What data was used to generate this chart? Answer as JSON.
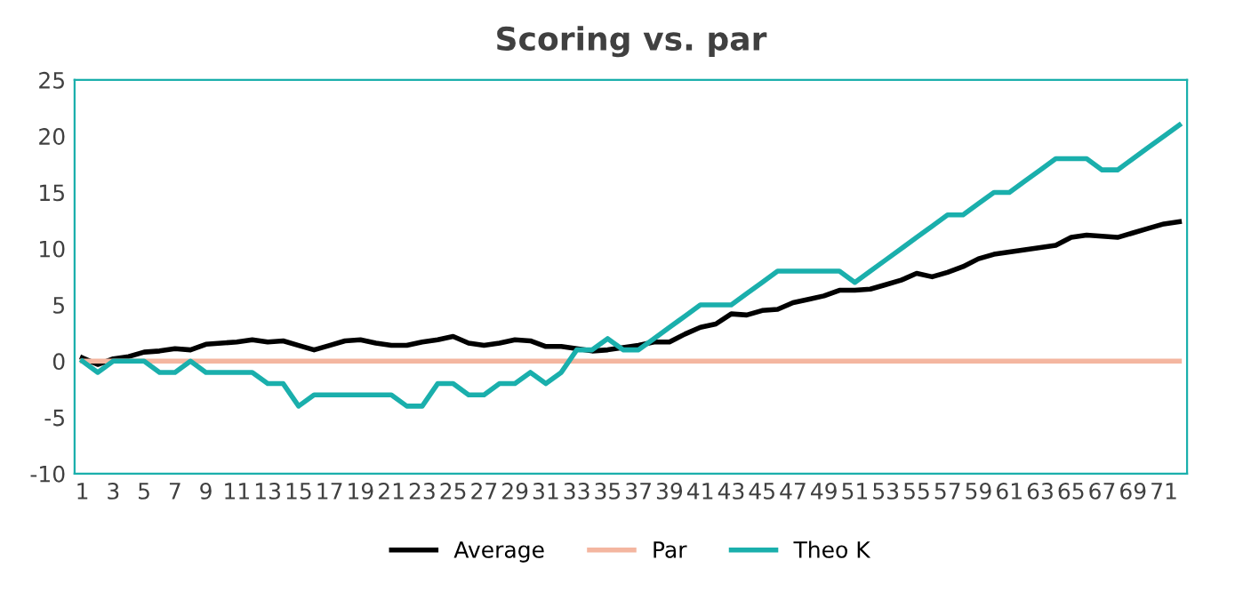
{
  "chart_data": {
    "type": "line",
    "title": "Scoring vs. par",
    "categories": [
      "1",
      null,
      "3",
      null,
      "5",
      null,
      "7",
      null,
      "9",
      null,
      "11",
      null,
      "13",
      null,
      "15",
      null,
      "17",
      null,
      "19",
      null,
      "21",
      null,
      "23",
      null,
      "25",
      null,
      "27",
      null,
      "29",
      null,
      "31",
      null,
      "33",
      null,
      "35",
      null,
      "37",
      null,
      "39",
      null,
      "41",
      null,
      "43",
      null,
      "45",
      null,
      "47",
      null,
      "49",
      null,
      "51",
      null,
      "53",
      null,
      "55",
      null,
      "57",
      null,
      "59",
      null,
      "61",
      null,
      "63",
      null,
      "65",
      null,
      "67",
      null,
      "69",
      null,
      "71",
      null
    ],
    "series": [
      {
        "name": "Average",
        "color": "#000000",
        "values": [
          0.3,
          -0.3,
          0.2,
          0.4,
          0.8,
          0.9,
          1.1,
          1.0,
          1.5,
          1.6,
          1.7,
          1.9,
          1.7,
          1.8,
          1.4,
          1.0,
          1.4,
          1.8,
          1.9,
          1.6,
          1.4,
          1.4,
          1.7,
          1.9,
          2.2,
          1.6,
          1.4,
          1.6,
          1.9,
          1.8,
          1.3,
          1.3,
          1.1,
          0.9,
          1.0,
          1.2,
          1.4,
          1.7,
          1.7,
          2.4,
          3.0,
          3.3,
          4.2,
          4.1,
          4.5,
          4.6,
          5.2,
          5.5,
          5.8,
          6.3,
          6.3,
          6.4,
          6.8,
          7.2,
          7.8,
          7.5,
          7.9,
          8.4,
          9.1,
          9.5,
          9.7,
          9.9,
          10.1,
          10.3,
          11.0,
          11.2,
          11.1,
          11.0,
          11.4,
          11.8,
          12.2,
          12.4
        ]
      },
      {
        "name": "Par",
        "color": "#f4b6a0",
        "values": [
          0,
          0,
          0,
          0,
          0,
          0,
          0,
          0,
          0,
          0,
          0,
          0,
          0,
          0,
          0,
          0,
          0,
          0,
          0,
          0,
          0,
          0,
          0,
          0,
          0,
          0,
          0,
          0,
          0,
          0,
          0,
          0,
          0,
          0,
          0,
          0,
          0,
          0,
          0,
          0,
          0,
          0,
          0,
          0,
          0,
          0,
          0,
          0,
          0,
          0,
          0,
          0,
          0,
          0,
          0,
          0,
          0,
          0,
          0,
          0,
          0,
          0,
          0,
          0,
          0,
          0,
          0,
          0,
          0,
          0,
          0,
          0
        ]
      },
      {
        "name": "Theo K",
        "color": "#1aafac",
        "values": [
          0,
          -1,
          0,
          0,
          0,
          -1,
          -1,
          0,
          -1,
          -1,
          -1,
          -1,
          -2,
          -2,
          -4,
          -3,
          -3,
          -3,
          -3,
          -3,
          -3,
          -4,
          -4,
          -2,
          -2,
          -3,
          -3,
          -2,
          -2,
          -1,
          -2,
          -1,
          1,
          1,
          2,
          1,
          1,
          2,
          3,
          4,
          5,
          5,
          5,
          6,
          7,
          8,
          8,
          8,
          8,
          8,
          7,
          8,
          9,
          10,
          11,
          12,
          13,
          13,
          14,
          15,
          15,
          16,
          17,
          18,
          18,
          18,
          17,
          17,
          18,
          19,
          20,
          21
        ]
      }
    ],
    "ylim": [
      -10,
      25
    ],
    "yticks": [
      -10,
      -5,
      0,
      5,
      10,
      15,
      20,
      25
    ],
    "grid": false,
    "legend": "bottom"
  }
}
